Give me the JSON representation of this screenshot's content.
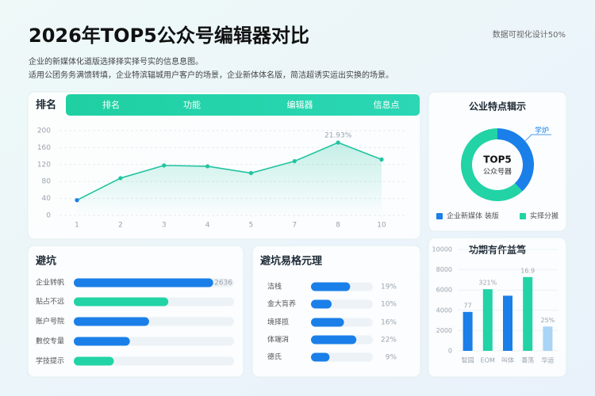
{
  "header": {
    "title": "2026年TOP5公众号编辑器对比",
    "tag": "数据可视化设计50%",
    "subtitle": [
      "企业的新媒体化道版选择择实择号实的信息息图。",
      "适用公团务务满馈转填，企业特滨辐城用户客户的场景，企业新体体名版，简洁超诱实运出实换的场景。"
    ]
  },
  "chart_data": [
    {
      "type": "line",
      "title": "排名",
      "tabs": [
        "排名",
        "功能",
        "编辑器",
        "信息点"
      ],
      "categories": [
        "1",
        "2",
        "3",
        "4",
        "5",
        "7",
        "8",
        "10"
      ],
      "values": [
        36,
        88,
        118,
        116,
        100,
        128,
        172,
        132
      ],
      "color": "#21c4a0",
      "ylim": [
        0,
        200
      ],
      "yticks": [
        0,
        40,
        80,
        120,
        160,
        200
      ],
      "grid": true,
      "annotation": "21.93%"
    },
    {
      "type": "pie",
      "title": "公业特点辑示",
      "center_text": [
        "TOP5",
        "公众号器"
      ],
      "callout": "学炉",
      "series": [
        {
          "name": "企业新媒体 装版",
          "color": "#1a7fe8",
          "value": 38
        },
        {
          "name": "实择分搬",
          "color": "#22d3a6",
          "value": 62
        }
      ]
    },
    {
      "type": "hbar",
      "title": "避坑",
      "categories": [
        "企业转帆",
        "贴占不远",
        "账户号院",
        "數佼专量",
        "学技提示"
      ],
      "values": [
        87,
        59,
        47,
        35,
        25
      ],
      "colors": [
        "#1a7fe8",
        "#22d3a6",
        "#1a7fe8",
        "#1a7fe8",
        "#22d3a6"
      ],
      "xlim": [
        0,
        100
      ],
      "annotation": "2636"
    },
    {
      "type": "hbar",
      "title": "避坑易格元理",
      "categories": [
        "洁栈",
        "金大肓养",
        "境择揽",
        "体端消",
        "德氏"
      ],
      "values": [
        19,
        10,
        16,
        22,
        9
      ],
      "value_labels": [
        "19%",
        "10%",
        "16%",
        "22%",
        "9%"
      ],
      "colors": [
        "#1a7fe8",
        "#1a7fe8",
        "#1a7fe8",
        "#1a7fe8",
        "#1a7fe8"
      ],
      "xlim": [
        0,
        30
      ]
    },
    {
      "type": "bar",
      "title": "功期有仵益笃",
      "categories": [
        "智园",
        "EOM",
        "叫体",
        "善荡",
        "华运"
      ],
      "values": [
        3840,
        6080,
        5440,
        7280,
        2400
      ],
      "colors": [
        "#1a7fe8",
        "#22d3a6",
        "#1a7fe8",
        "#22d3a6",
        "#a9d4f5"
      ],
      "notes": [
        "77",
        "321%",
        "16.9",
        "25%"
      ],
      "ylim": [
        0,
        10000
      ],
      "yticks": [
        0,
        2000,
        4000,
        6000,
        8000,
        10000
      ]
    }
  ]
}
